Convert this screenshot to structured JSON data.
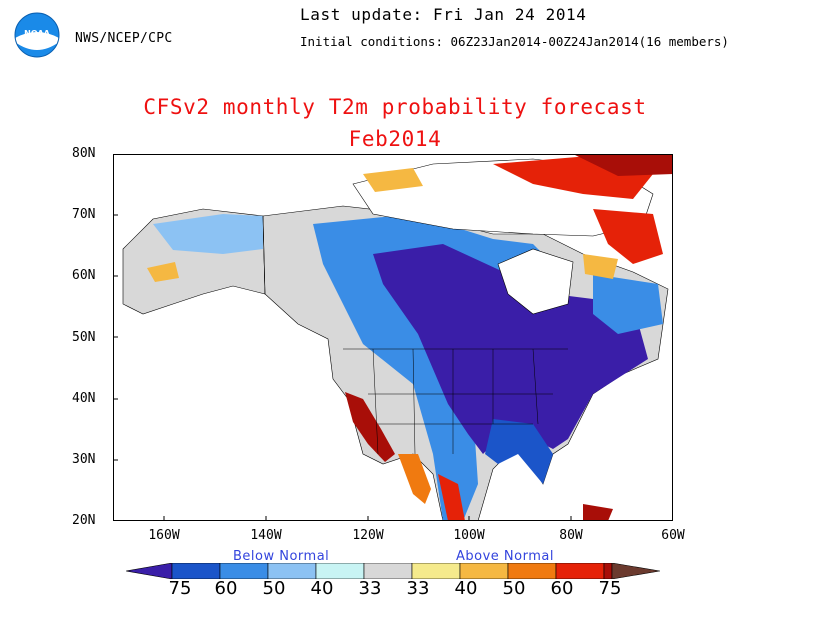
{
  "header": {
    "agency": "NWS/NCEP/CPC",
    "last_update": "Last update: Fri Jan 24 2014",
    "initial_conditions": "Initial conditions: 06Z23Jan2014-00Z24Jan2014(16 members)",
    "logo_text": "NOAA"
  },
  "title": {
    "line1": "CFSv2 monthly T2m probability forecast",
    "line2": "Feb2014"
  },
  "map": {
    "lat_labels": [
      "80N",
      "70N",
      "60N",
      "50N",
      "40N",
      "30N",
      "20N"
    ],
    "lon_labels": [
      "160W",
      "140W",
      "120W",
      "100W",
      "80W",
      "60W"
    ],
    "lat_range": [
      20,
      80
    ],
    "lon_range": [
      -170,
      -60
    ]
  },
  "legend": {
    "below_label": "Below Normal",
    "above_label": "Above Normal",
    "tick_labels": [
      "75",
      "60",
      "50",
      "40",
      "33",
      "33",
      "40",
      "50",
      "60",
      "75"
    ],
    "colors": {
      "below": [
        "#3a1ea8",
        "#1b55c9",
        "#3a8de6",
        "#8cc2f3",
        "#c8f4f4"
      ],
      "near_normal": "#d8d8d8",
      "above": [
        "#f5ea8c",
        "#f5b842",
        "#f07a10",
        "#e52208",
        "#a80e08",
        "#6b3a2e"
      ]
    }
  }
}
